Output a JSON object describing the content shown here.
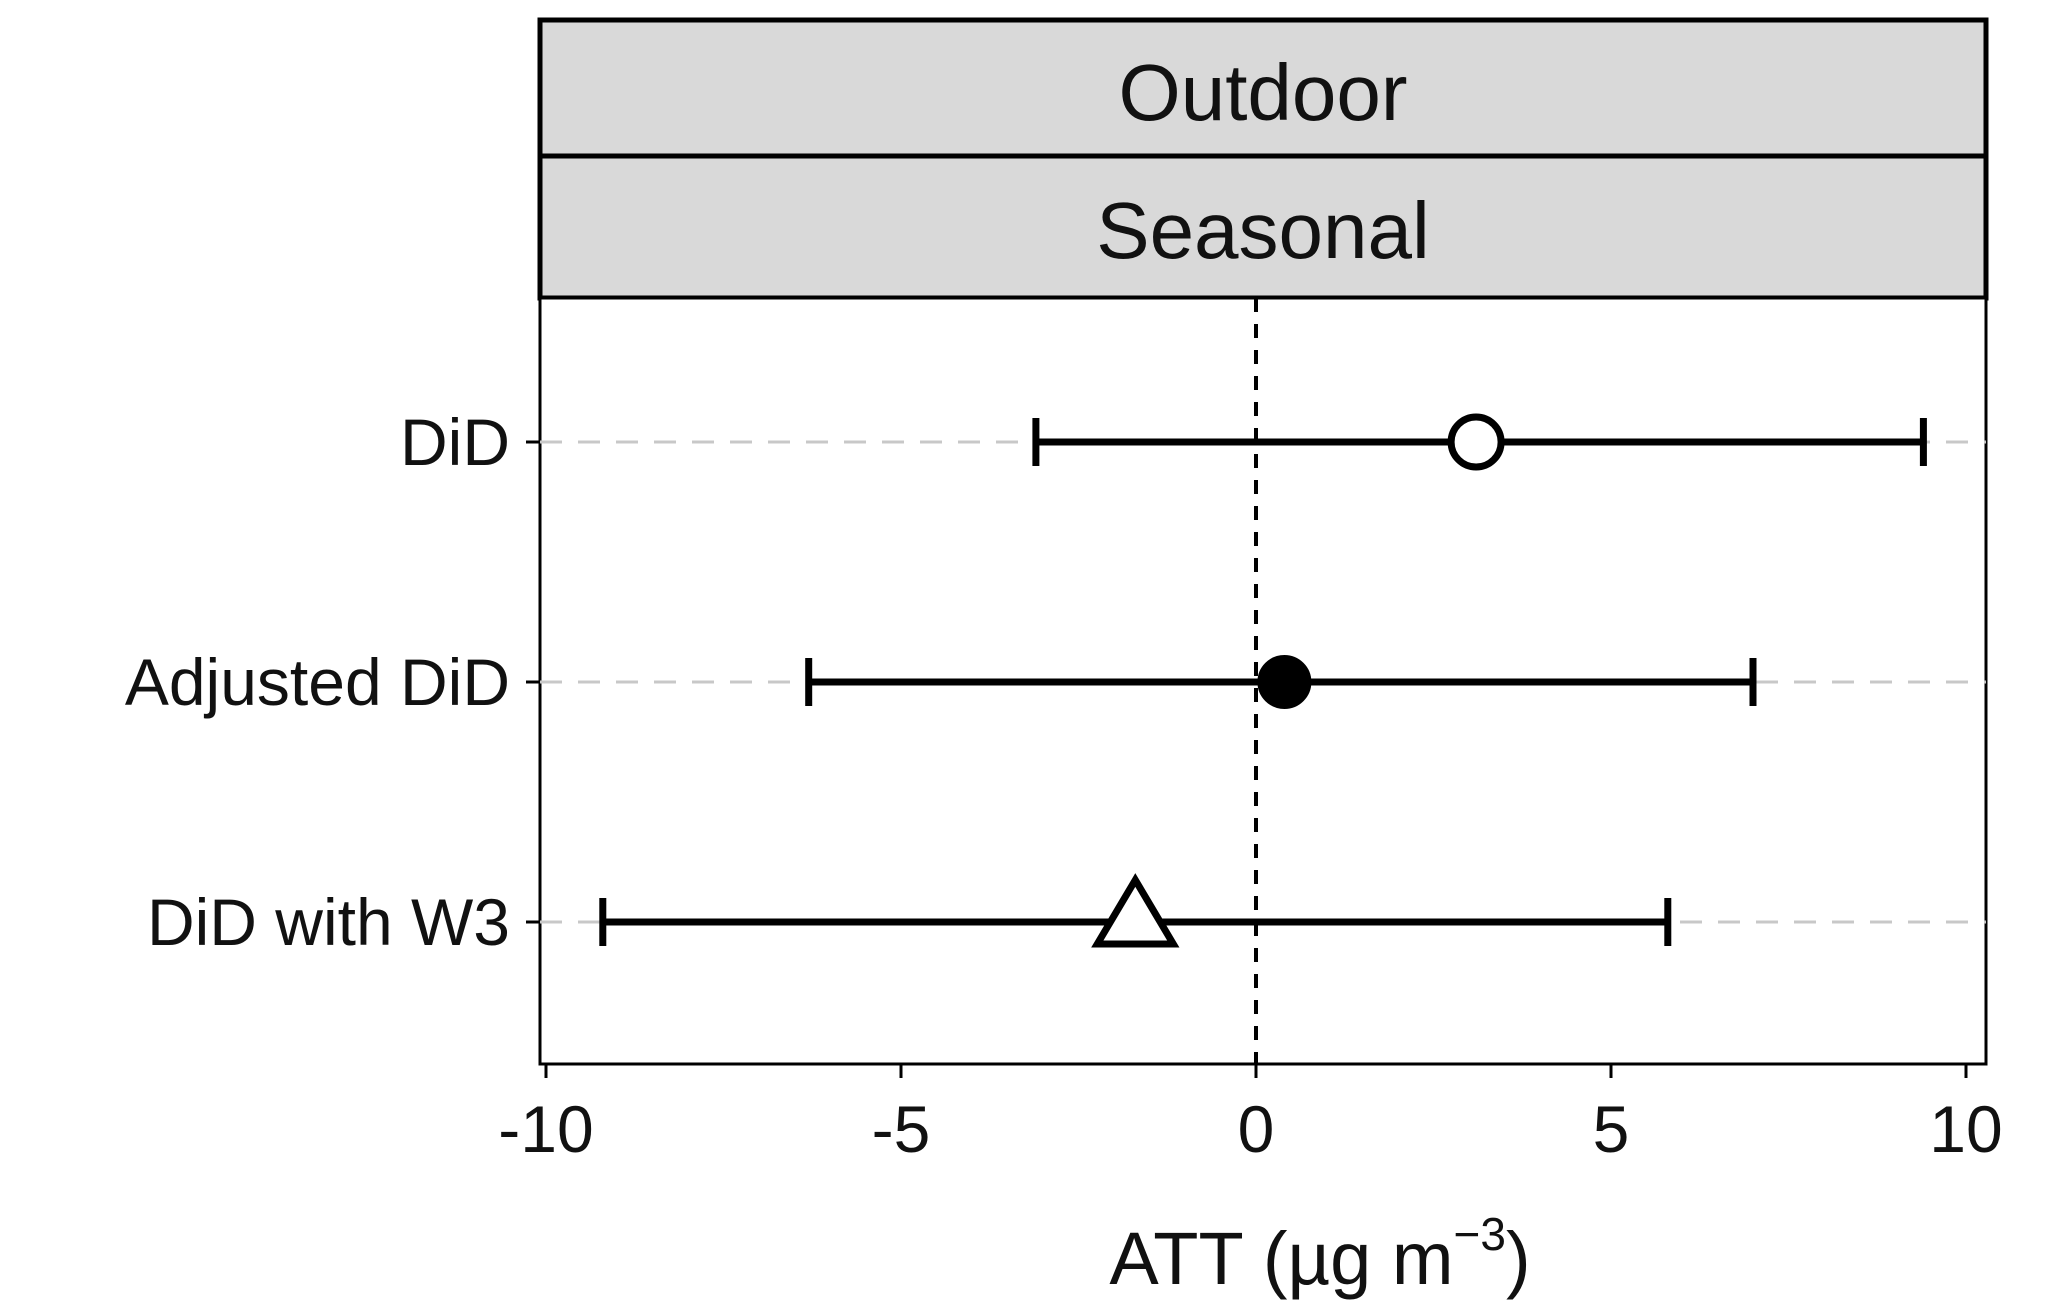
{
  "chart_data": {
    "type": "forest",
    "facet_strips": [
      "Outdoor",
      "Seasonal"
    ],
    "xlabel": {
      "prefix": "ATT (µg m",
      "superscript": "−3",
      "suffix": ")"
    },
    "xlim": [
      -10,
      10
    ],
    "x_ticks": [
      -10,
      -5,
      0,
      5,
      10
    ],
    "x_tick_labels": [
      "-10",
      "-5",
      "0",
      "5",
      "10"
    ],
    "reference_line_x": 0,
    "grid": "horizontal dashed",
    "series": [
      {
        "label": "DiD",
        "estimate": 3.1,
        "lower": -3.1,
        "upper": 9.4,
        "marker": "open-circle"
      },
      {
        "label": "Adjusted DiD",
        "estimate": 0.4,
        "lower": -6.3,
        "upper": 7.0,
        "marker": "filled-circle"
      },
      {
        "label": "DiD with W3",
        "estimate": -1.7,
        "lower": -9.2,
        "upper": 5.8,
        "marker": "open-triangle"
      }
    ],
    "colors": {
      "ink": "#000000",
      "strip_fill": "#d9d9d9",
      "grid": "#c8c8c8"
    }
  }
}
